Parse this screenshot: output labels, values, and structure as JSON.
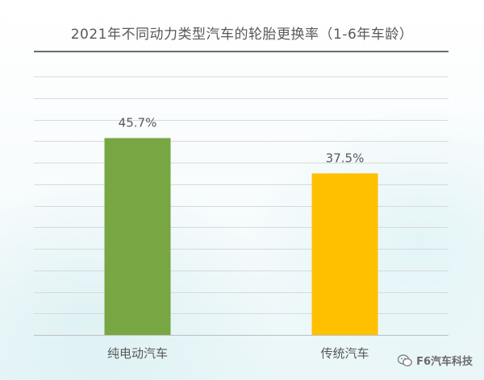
{
  "chart_data": {
    "type": "bar",
    "title": "2021年不同动力类型汽车的轮胎更换率（1-6年车龄）",
    "categories": [
      "纯电动汽车",
      "传统汽车"
    ],
    "values": [
      45.7,
      37.5
    ],
    "value_labels": [
      "45.7%",
      "37.5%"
    ],
    "colors": [
      "#77a642",
      "#ffc000"
    ],
    "ylim": [
      0,
      60
    ],
    "grid": true,
    "legend": "none",
    "xlabel": "",
    "ylabel": ""
  },
  "watermark": {
    "icon": "wechat-icon",
    "text": "F6汽车科技"
  }
}
